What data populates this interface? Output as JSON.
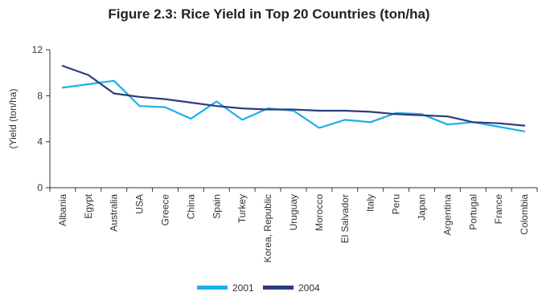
{
  "chart_data": {
    "type": "line",
    "title": "Figure 2.3: Rice Yield in Top 20 Countries (ton/ha)",
    "xlabel": "",
    "ylabel": "(Yield (ton/ha)",
    "ylim": [
      0,
      12
    ],
    "yticks": [
      0,
      4,
      8,
      12
    ],
    "grid": false,
    "legend_position": "bottom-center",
    "categories": [
      "Albania",
      "Egypt",
      "Australia",
      "USA",
      "Greece",
      "China",
      "Spain",
      "Turkey",
      "Korea, Republic",
      "Uruguay",
      "Morocco",
      "El Salvador",
      "Italy",
      "Peru",
      "Japan",
      "Argentina",
      "Portugal",
      "France",
      "Colombia"
    ],
    "series": [
      {
        "name": "2001",
        "color": "#1ab0e8",
        "values": [
          8.7,
          9.0,
          9.3,
          7.1,
          7.0,
          6.0,
          7.5,
          5.9,
          6.9,
          6.7,
          5.2,
          5.9,
          5.7,
          6.5,
          6.4,
          5.5,
          5.7,
          5.3,
          4.9
        ]
      },
      {
        "name": "2004",
        "color": "#2e3b7c",
        "values": [
          10.6,
          9.8,
          8.2,
          7.9,
          7.7,
          7.4,
          7.1,
          6.9,
          6.8,
          6.8,
          6.7,
          6.7,
          6.6,
          6.4,
          6.3,
          6.2,
          5.7,
          5.6,
          5.4
        ]
      }
    ]
  }
}
